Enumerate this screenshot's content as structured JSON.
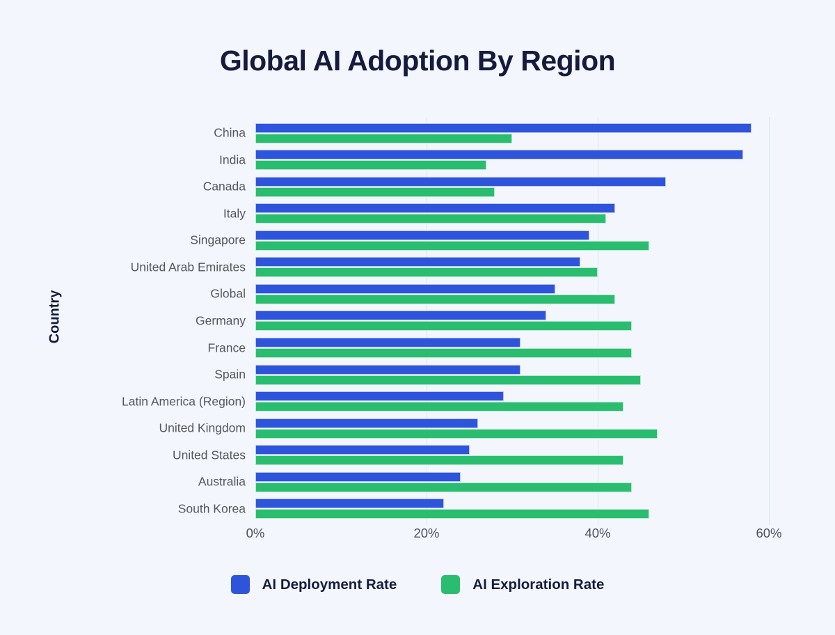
{
  "title": "Global AI Adoption By Region",
  "y_axis_title": "Country",
  "colors": {
    "background": "#f3f7fd",
    "deployment_blue": "#2e54dc",
    "exploration_green": "#2abd70",
    "title_text": "#161b3d",
    "axis_label_text": "#55565f",
    "gridline": "#dfe5ec"
  },
  "legend": [
    {
      "label": "AI Deployment Rate",
      "color": "#2e54dc"
    },
    {
      "label": "AI Exploration Rate",
      "color": "#2abd70"
    }
  ],
  "chart_data": {
    "type": "bar",
    "orientation": "horizontal",
    "title": "Global AI Adoption By Region",
    "ylabel": "Country",
    "xlabel": "",
    "xlim": [
      0,
      62
    ],
    "grid": "vertical",
    "legend_position": "bottom",
    "categories": [
      "China",
      "India",
      "Canada",
      "Italy",
      "Singapore",
      "United Arab Emirates",
      "Global",
      "Germany",
      "France",
      "Spain",
      "Latin America (Region)",
      "United Kingdom",
      "United States",
      "Australia",
      "South Korea"
    ],
    "series": [
      {
        "name": "AI Deployment Rate",
        "color": "#2e54dc",
        "values": [
          58,
          57,
          48,
          42,
          39,
          38,
          35,
          34,
          31,
          31,
          29,
          26,
          25,
          24,
          22
        ]
      },
      {
        "name": "AI Exploration Rate",
        "color": "#2abd70",
        "values": [
          30,
          27,
          28,
          41,
          46,
          40,
          42,
          44,
          44,
          45,
          43,
          47,
          43,
          44,
          46
        ]
      }
    ],
    "x_ticks": [
      {
        "label": "0%",
        "value": 0
      },
      {
        "label": "20%",
        "value": 20
      },
      {
        "label": "40%",
        "value": 40
      },
      {
        "label": "60%",
        "value": 60
      }
    ]
  }
}
